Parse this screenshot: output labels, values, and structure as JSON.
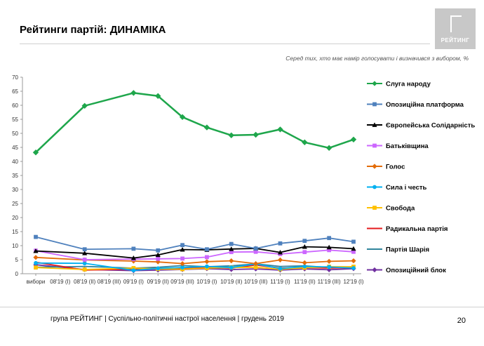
{
  "page": {
    "title": "Рейтинги партій: ДИНАМІКА",
    "subtitle": "Серед тих, хто має намір голосувати і визначився з вибором, %",
    "logo_text": "РЕЙТИНГ",
    "footer": "група РЕЙТИНГ | Суспільно-політичні настрої населення  | грудень 2019",
    "page_number": "20"
  },
  "chart_data": {
    "type": "line",
    "title": "",
    "xlabel": "",
    "ylabel": "",
    "ylim": [
      0,
      70
    ],
    "yticks": [
      0,
      5,
      10,
      15,
      20,
      25,
      30,
      35,
      40,
      45,
      50,
      55,
      60,
      65,
      70
    ],
    "grid": false,
    "legend_position": "right",
    "categories": [
      "вибори",
      "08'19 (I)",
      "08'19 (II)",
      "08'19 (III)",
      "09'19 (I)",
      "09'19 (II)",
      "09'19 (III)",
      "10'19 (I)",
      "10'19 (II)",
      "10'19 (III)",
      "11'19 (I)",
      "11'19 (II)",
      "11'19 (III)",
      "12'19 (I)"
    ],
    "series": [
      {
        "name": "Слуга народу",
        "color": "#1ea64b",
        "marker": "diamond",
        "values": [
          43.2,
          null,
          59.8,
          null,
          64.4,
          63.3,
          55.8,
          52.1,
          49.3,
          49.5,
          51.4,
          46.8,
          44.8,
          47.8
        ]
      },
      {
        "name": "Опозиційна платформа",
        "color": "#4f81bd",
        "marker": "square",
        "values": [
          13.1,
          null,
          8.7,
          null,
          8.9,
          8.3,
          10.2,
          8.7,
          10.6,
          9.0,
          10.8,
          11.7,
          12.7,
          11.4
        ]
      },
      {
        "name": "Європейська Солідарність",
        "color": "#000000",
        "marker": "triangle",
        "values": [
          8.1,
          null,
          7.3,
          null,
          5.6,
          6.7,
          8.6,
          8.5,
          8.8,
          9.0,
          7.6,
          9.6,
          9.4,
          8.9
        ]
      },
      {
        "name": "Батьківщина",
        "color": "#cc66ff",
        "marker": "square",
        "values": [
          8.2,
          null,
          5.0,
          null,
          5.2,
          5.3,
          5.4,
          5.9,
          7.7,
          7.8,
          7.0,
          7.7,
          8.4,
          7.8
        ]
      },
      {
        "name": "Голос",
        "color": "#e36c09",
        "marker": "diamond",
        "values": [
          5.8,
          null,
          4.9,
          null,
          4.5,
          4.2,
          3.6,
          4.3,
          4.6,
          3.6,
          4.9,
          3.9,
          4.4,
          4.6
        ]
      },
      {
        "name": "Сила і честь",
        "color": "#00b0f0",
        "marker": "circle",
        "values": [
          3.8,
          null,
          3.7,
          null,
          1.2,
          1.9,
          2.2,
          2.6,
          2.2,
          3.5,
          1.8,
          2.6,
          2.4,
          2.0
        ]
      },
      {
        "name": "Свобода",
        "color": "#ffc000",
        "marker": "square",
        "values": [
          2.2,
          null,
          1.5,
          null,
          2.0,
          1.7,
          1.6,
          2.0,
          2.2,
          2.3,
          1.6,
          2.1,
          2.5,
          2.5
        ]
      },
      {
        "name": "Радикальна партія",
        "color": "#e41a1c",
        "marker": "none",
        "values": [
          4.1,
          null,
          1.3,
          null,
          1.6,
          1.9,
          1.8,
          2.2,
          2.0,
          3.1,
          2.0,
          2.2,
          2.0,
          2.2
        ]
      },
      {
        "name": "Партія Шарія",
        "color": "#31859c",
        "marker": "none",
        "values": [
          2.3,
          null,
          2.6,
          null,
          2.0,
          2.3,
          2.9,
          2.5,
          2.8,
          3.5,
          2.6,
          2.8,
          2.2,
          2.1
        ]
      },
      {
        "name": "Опозиційний блок",
        "color": "#7030a0",
        "marker": "diamond",
        "values": [
          3.2,
          null,
          1.5,
          null,
          1.1,
          1.3,
          1.5,
          1.8,
          1.5,
          1.7,
          1.3,
          1.7,
          1.4,
          1.8
        ]
      }
    ]
  }
}
